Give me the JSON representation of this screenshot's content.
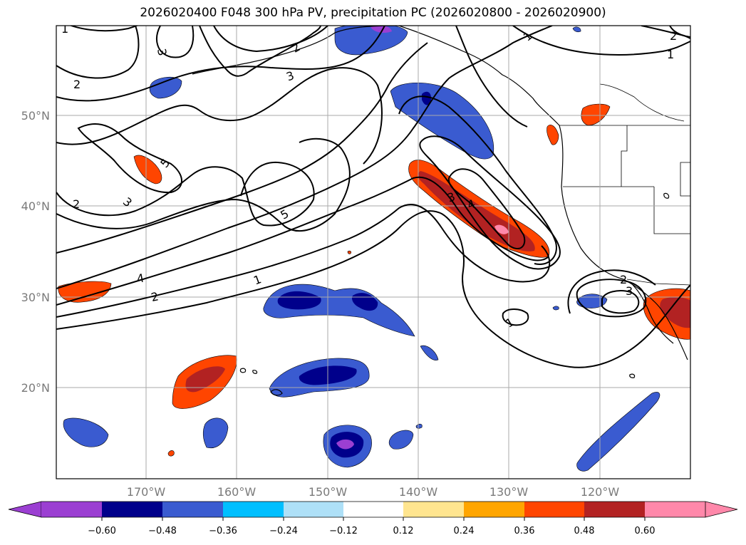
{
  "title": "2026020400 F048 300 hPa PV, precipitation PC (2026020800 - 2026020900)",
  "map": {
    "lat_labels": [
      "50°N",
      "40°N",
      "30°N",
      "20°N"
    ],
    "lon_labels": [
      "170°W",
      "160°W",
      "150°W",
      "140°W",
      "130°W",
      "120°W"
    ],
    "contour_labels": [
      "1",
      "2",
      "3",
      "3",
      "2",
      "5",
      "3",
      "2",
      "4",
      "2",
      "5",
      "1",
      "3",
      "4",
      "2",
      "3",
      "1",
      "1",
      "1",
      "2"
    ]
  },
  "colorbar": {
    "tick_labels": [
      "−0.60",
      "−0.48",
      "−0.36",
      "−0.24",
      "−0.12",
      "0.12",
      "0.24",
      "0.36",
      "0.48",
      "0.60"
    ],
    "colors": [
      "#9b3fd2",
      "#00008b",
      "#3a5bd0",
      "#00bfff",
      "#aee0f7",
      "#ffffff",
      "#ffe58f",
      "#ffa500",
      "#ff4500",
      "#b22222",
      "#ff88aa"
    ]
  }
}
